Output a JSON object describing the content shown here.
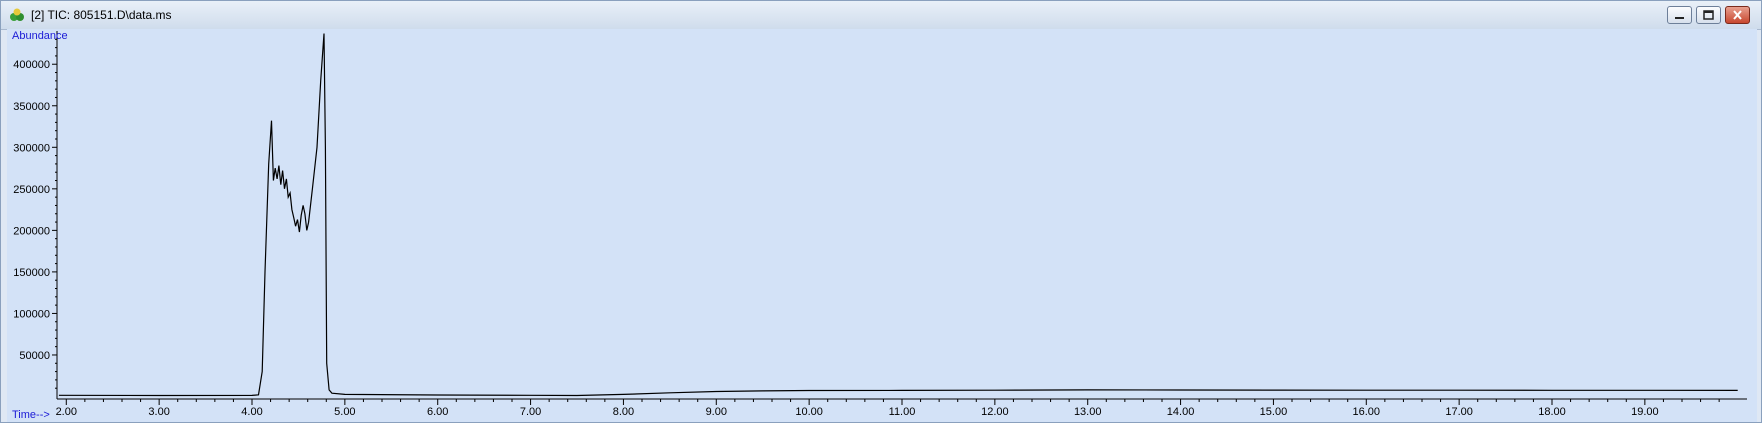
{
  "window": {
    "title": "[2] TIC: 805151.D\\data.ms",
    "icon": "chromatogram-app-icon",
    "buttons": [
      "minimize-icon",
      "restore-icon",
      "close-icon"
    ]
  },
  "chart_data": {
    "type": "line",
    "ylabel": "Abundance",
    "xlabel": "Time-->",
    "xlim": [
      1.9,
      20.1
    ],
    "ylim": [
      -3000,
      440000
    ],
    "x_ticks": [
      "2.00",
      "3.00",
      "4.00",
      "5.00",
      "6.00",
      "7.00",
      "8.00",
      "9.00",
      "10.00",
      "11.00",
      "12.00",
      "13.00",
      "14.00",
      "15.00",
      "16.00",
      "17.00",
      "18.00",
      "19.00"
    ],
    "y_ticks": [
      "50000",
      "100000",
      "150000",
      "200000",
      "250000",
      "300000",
      "350000",
      "400000"
    ],
    "series": [
      {
        "color": "#000000",
        "points": [
          [
            1.92,
            1500
          ],
          [
            3.0,
            1200
          ],
          [
            4.0,
            1300
          ],
          [
            4.07,
            2000
          ],
          [
            4.11,
            30000
          ],
          [
            4.14,
            150000
          ],
          [
            4.18,
            280000
          ],
          [
            4.21,
            332000
          ],
          [
            4.23,
            260000
          ],
          [
            4.25,
            275000
          ],
          [
            4.27,
            262000
          ],
          [
            4.29,
            278000
          ],
          [
            4.31,
            255000
          ],
          [
            4.33,
            272000
          ],
          [
            4.35,
            250000
          ],
          [
            4.37,
            262000
          ],
          [
            4.39,
            240000
          ],
          [
            4.41,
            245000
          ],
          [
            4.43,
            225000
          ],
          [
            4.45,
            215000
          ],
          [
            4.47,
            205000
          ],
          [
            4.49,
            213000
          ],
          [
            4.51,
            198000
          ],
          [
            4.53,
            218000
          ],
          [
            4.55,
            230000
          ],
          [
            4.57,
            220000
          ],
          [
            4.59,
            200000
          ],
          [
            4.61,
            210000
          ],
          [
            4.65,
            250000
          ],
          [
            4.7,
            300000
          ],
          [
            4.74,
            380000
          ],
          [
            4.775,
            437000
          ],
          [
            4.79,
            300000
          ],
          [
            4.805,
            40000
          ],
          [
            4.83,
            8000
          ],
          [
            4.86,
            4000
          ],
          [
            5.0,
            2500
          ],
          [
            6.0,
            1800
          ],
          [
            7.0,
            1500
          ],
          [
            7.5,
            1200
          ],
          [
            8.0,
            2500
          ],
          [
            8.5,
            4500
          ],
          [
            9.0,
            6000
          ],
          [
            9.5,
            6800
          ],
          [
            10.0,
            7200
          ],
          [
            11.0,
            7400
          ],
          [
            12.0,
            7600
          ],
          [
            13.0,
            8000
          ],
          [
            14.0,
            7800
          ],
          [
            15.0,
            7700
          ],
          [
            16.0,
            7600
          ],
          [
            17.0,
            7600
          ],
          [
            18.0,
            7500
          ],
          [
            19.0,
            7500
          ],
          [
            20.0,
            7400
          ]
        ]
      }
    ]
  }
}
